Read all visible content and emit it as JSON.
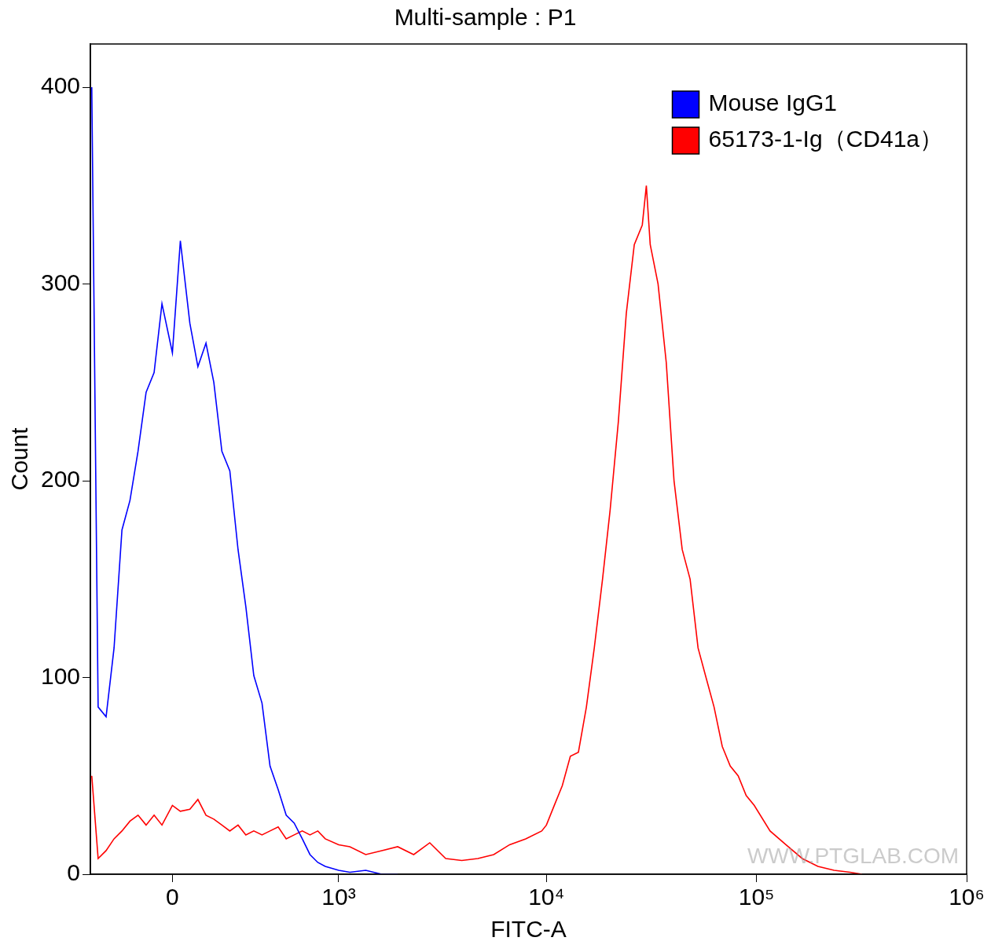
{
  "chart_data": {
    "type": "line",
    "title": "Multi-sample : P1",
    "x_label": "FITC-A",
    "y_label": "Count",
    "log": "x",
    "grid": false,
    "legend": "upper right",
    "annotation": "WWW.PTGLAB.COM",
    "xlim": [
      -340,
      1000000
    ],
    "xticks": [
      0,
      {
        "value": 1000,
        "label": "10³"
      },
      {
        "value": 10000,
        "label": "10⁴"
      },
      {
        "value": 100000,
        "label": "10⁵"
      },
      {
        "value": 1000000,
        "label": "10⁶"
      }
    ],
    "ylim": [
      0,
      422
    ],
    "yticks": [
      0,
      100,
      200,
      300,
      400
    ],
    "x": [
      -333,
      -301,
      -263,
      -227,
      -193,
      -160,
      -128,
      -97,
      -67,
      -38,
      0,
      29,
      64,
      94,
      125,
      156,
      189,
      223,
      260,
      297,
      337,
      381,
      427,
      477,
      530,
      587,
      649,
      713,
      783,
      855,
      1000,
      1137,
      1361,
      1630,
      1946,
      2324,
      2776,
      3310,
      3950,
      4714,
      5610,
      6680,
      7970,
      9500,
      10000,
      10900,
      11900,
      13000,
      14200,
      15500,
      16900,
      18500,
      20100,
      22000,
      24000,
      26200,
      28600,
      29900,
      31200,
      34000,
      37200,
      40500,
      44300,
      48300,
      52700,
      57500,
      62800,
      68700,
      75000,
      81800,
      89300,
      97500,
      116000,
      138000,
      165000,
      196000,
      234000,
      279000,
      318000
    ],
    "series": [
      {
        "name": "Mouse IgG1",
        "color": "#0000ff",
        "values": [
          400,
          85,
          80,
          115,
          175,
          190,
          215,
          245,
          255,
          290,
          265,
          322,
          280,
          258,
          270,
          250,
          215,
          205,
          165,
          136,
          101,
          87,
          55,
          43,
          30,
          26,
          18,
          10,
          6,
          4,
          2,
          1,
          2,
          0,
          0,
          null,
          null,
          null,
          null,
          null,
          null,
          null,
          null,
          null,
          null,
          null,
          null,
          null,
          null,
          null,
          null,
          null,
          null,
          null,
          null,
          null,
          null,
          null,
          null,
          null,
          null,
          null,
          null,
          null,
          null,
          null,
          null,
          null,
          null,
          null,
          null,
          null,
          null,
          null,
          null,
          null,
          null,
          null,
          null
        ]
      },
      {
        "name": "65173-1-Ig（CD41a）",
        "color": "#ff0000",
        "values": [
          50,
          8,
          12,
          18,
          22,
          27,
          30,
          25,
          30,
          25,
          35,
          32,
          33,
          38,
          30,
          28,
          25,
          22,
          25,
          20,
          22,
          20,
          22,
          24,
          18,
          20,
          22,
          20,
          22,
          18,
          15,
          14,
          10,
          12,
          14,
          10,
          16,
          8,
          7,
          8,
          10,
          15,
          18,
          22,
          25,
          35,
          45,
          60,
          62,
          85,
          115,
          150,
          185,
          230,
          285,
          320,
          330,
          350,
          320,
          300,
          260,
          200,
          165,
          150,
          115,
          100,
          85,
          65,
          55,
          50,
          40,
          35,
          22,
          15,
          8,
          4,
          2,
          1,
          0
        ]
      }
    ]
  }
}
